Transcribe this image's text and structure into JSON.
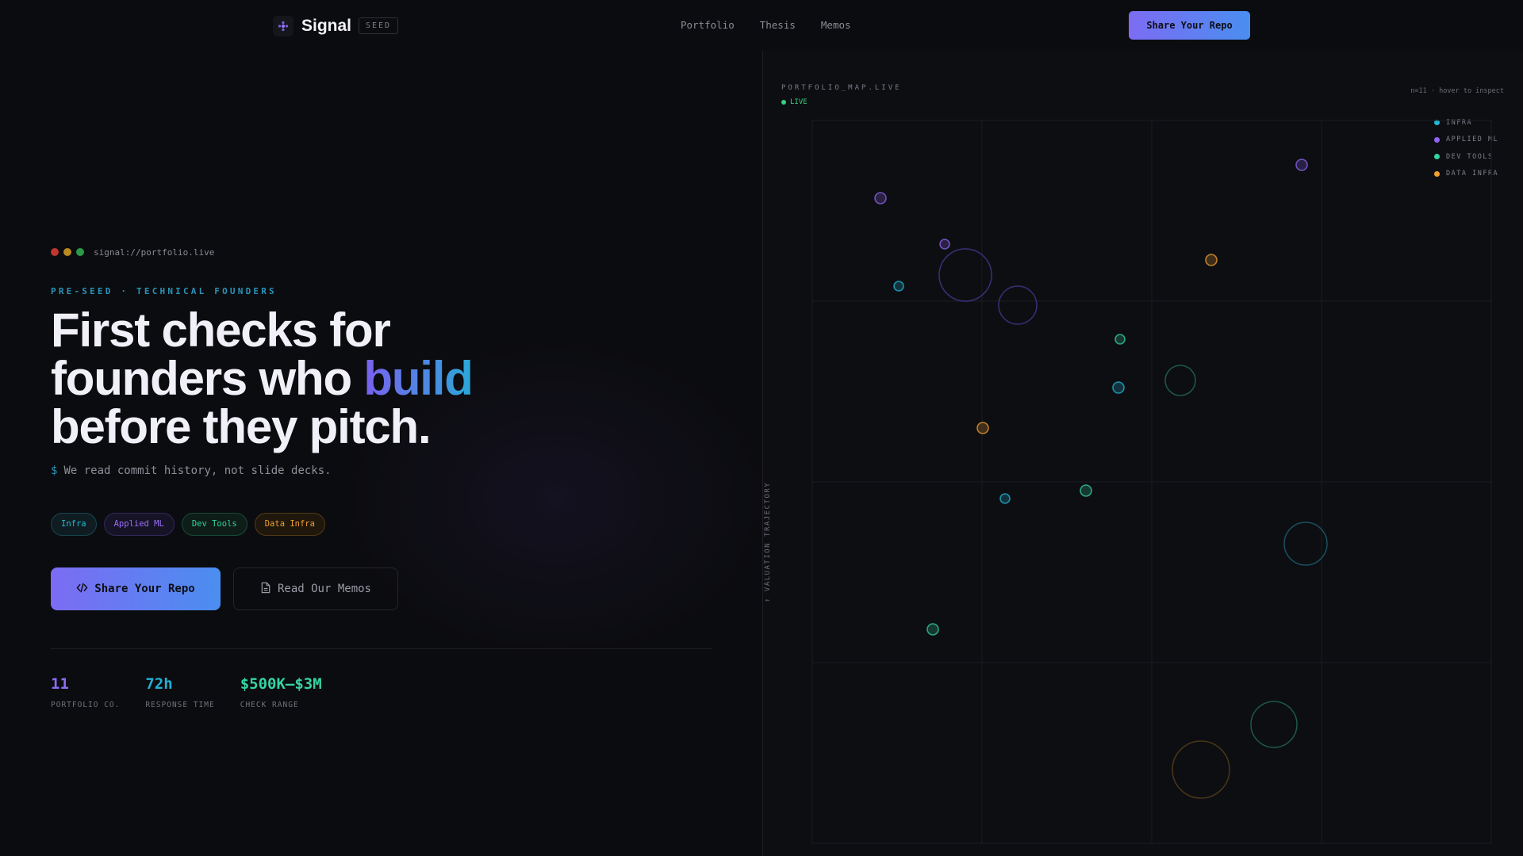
{
  "nav": {
    "brand": "Signal",
    "badge": "SEED",
    "links": [
      "Portfolio",
      "Thesis",
      "Memos"
    ],
    "cta": "Share Your Repo"
  },
  "hero": {
    "terminal_url": "signal://portfolio.live",
    "eyebrow": "PRE-SEED · TECHNICAL FOUNDERS",
    "headline_line1": "First checks for",
    "headline_line2_pre": "founders who ",
    "headline_line2_accent": "build",
    "headline_line3": "before they pitch.",
    "prompt": "$",
    "subline": "We read commit history, not slide decks.",
    "tags": [
      {
        "label": "Infra",
        "color": "#22b8d6"
      },
      {
        "label": "Applied ML",
        "color": "#9a70f5"
      },
      {
        "label": "Dev Tools",
        "color": "#35d3a0"
      },
      {
        "label": "Data Infra",
        "color": "#f0a030"
      }
    ],
    "primary_button": "Share Your Repo",
    "secondary_button": "Read Our Memos",
    "stats": [
      {
        "value": "11",
        "label": "PORTFOLIO CO.",
        "color": "#8a6cf3"
      },
      {
        "value": "72h",
        "label": "RESPONSE TIME",
        "color": "#22b0d6"
      },
      {
        "value": "$500K–$3M",
        "label": "CHECK RANGE",
        "color": "#35d3a0"
      }
    ]
  },
  "map": {
    "title": "PORTFOLIO_MAP.LIVE",
    "live": "LIVE",
    "hint": "n=11 · hover to inspect",
    "y_axis": "↑ VALUATION TRAJECTORY",
    "legend": [
      {
        "label": "INFRA",
        "color": "#22b8d6"
      },
      {
        "label": "APPLIED ML",
        "color": "#8f65f2"
      },
      {
        "label": "DEV TOOLS",
        "color": "#35d3a0"
      },
      {
        "label": "DATA INFRA",
        "color": "#f0a030"
      }
    ],
    "companies": [
      {
        "category": "APPLIED ML"
      },
      {
        "category": "APPLIED ML"
      },
      {
        "category": "APPLIED ML"
      },
      {
        "category": "INFRA"
      },
      {
        "category": "INFRA"
      },
      {
        "category": "INFRA"
      },
      {
        "category": "DEV TOOLS"
      },
      {
        "category": "DEV TOOLS"
      },
      {
        "category": "DEV TOOLS"
      },
      {
        "category": "DATA INFRA"
      },
      {
        "category": "DATA INFRA"
      }
    ]
  }
}
